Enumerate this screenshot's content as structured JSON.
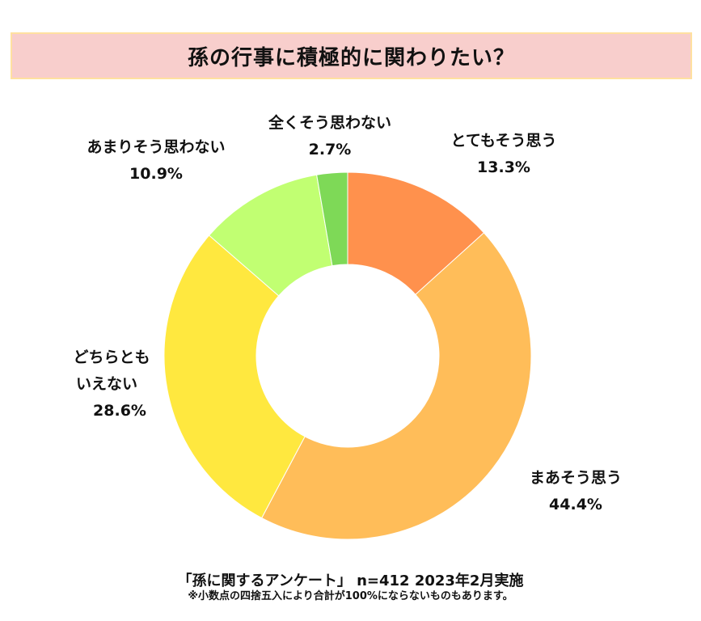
{
  "chart_data": {
    "type": "pie",
    "donut": true,
    "title": "孫の行事に積極的に関わりたい？",
    "start": "top",
    "direction": "clockwise",
    "slices": [
      {
        "label": "とてもそう思う",
        "value": 13.3,
        "display": "13.3%",
        "color": "#FF914D"
      },
      {
        "label": "まあそう思う",
        "value": 44.4,
        "display": "44.4%",
        "color": "#FFBD59"
      },
      {
        "label": "どちらとも いえない",
        "value": 28.6,
        "display": "28.6%",
        "color": "#FFE83F"
      },
      {
        "label": "あまりそう思わない",
        "value": 10.9,
        "display": "10.9%",
        "color": "#C1FF72"
      },
      {
        "label": "全くそう思わない",
        "value": 2.7,
        "display": "2.7%",
        "color": "#7ED957"
      }
    ],
    "legend": "none"
  },
  "labels": {
    "s0": [
      "とてもそう思う",
      "13.3%"
    ],
    "s1": [
      "まあそう思う",
      "44.4%"
    ],
    "s2": [
      "どちらとも",
      "いえない",
      "28.6%"
    ],
    "s3": [
      "あまりそう思わない",
      "10.9%"
    ],
    "s4": [
      "全くそう思わない",
      "2.7%"
    ]
  },
  "footer": {
    "source": "「孫に関するアンケート」 n=412 2023年2月実施",
    "note": "※小数点の四捨五入により合計が100%にならないものもあります。"
  }
}
